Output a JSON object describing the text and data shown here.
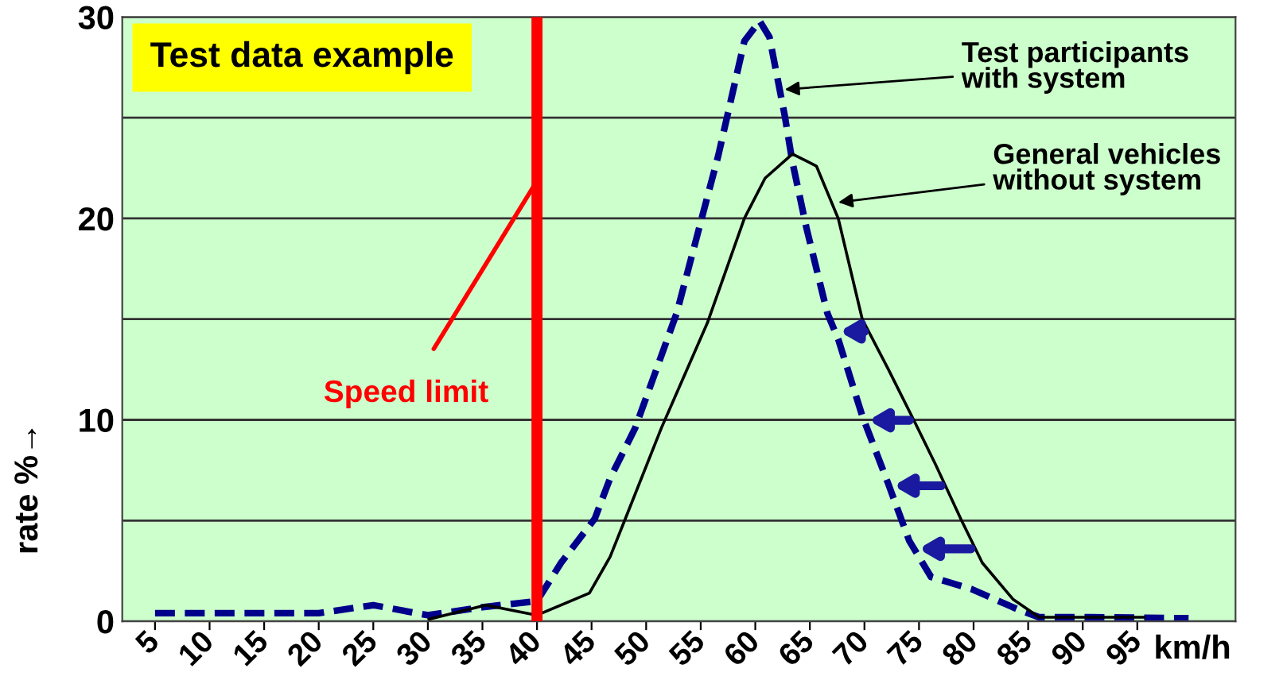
{
  "chart_data": {
    "type": "line",
    "title": "Test data example",
    "xlabel": "km/h",
    "ylabel": "rate %→",
    "xlim": [
      2,
      104
    ],
    "ylim": [
      0,
      30
    ],
    "xticks": [
      5,
      10,
      15,
      20,
      25,
      30,
      35,
      40,
      45,
      50,
      55,
      60,
      65,
      70,
      75,
      80,
      85,
      90,
      95
    ],
    "yticks": [
      0,
      {
        "value": 5,
        "label": null
      },
      10,
      {
        "value": 15,
        "label": null
      },
      20,
      {
        "value": 25,
        "label": null
      },
      30
    ],
    "grid": "y",
    "legend": false,
    "series": [
      {
        "color": "#00008b",
        "line_style": "dashed",
        "x": [
          5,
          10,
          15,
          20,
          25,
          30,
          35,
          40,
          42.2,
          45.3,
          46.7,
          49.0,
          52.8,
          56.6,
          59.0,
          60.4,
          61.3,
          62.7,
          63.4,
          64.7,
          66.6,
          67.6,
          69.8,
          72.2,
          74.1,
          76.1,
          79.8,
          84.0,
          86.0,
          90.8,
          99.7
        ],
        "values": [
          0.4,
          0.4,
          0.4,
          0.4,
          0.8,
          0.3,
          0.7,
          1.0,
          2.9,
          5.1,
          7.1,
          9.6,
          15.3,
          23.1,
          28.8,
          29.8,
          29.0,
          25.1,
          22.8,
          19.5,
          15.3,
          14.0,
          10.2,
          6.8,
          4.0,
          2.2,
          1.6,
          0.6,
          0.2,
          0.2,
          0.15
        ]
      },
      {
        "color": "#000000",
        "line_style": "solid",
        "x": [
          30.1,
          35.3,
          40.0,
          44.8,
          46.7,
          48.1,
          51.4,
          55.6,
          59.0,
          60.9,
          63.4,
          65.6,
          67.6,
          69.8,
          72.2,
          74.6,
          76.5,
          78.9,
          80.8,
          83.6,
          86.0,
          95.6
        ],
        "values": [
          0.1,
          0.8,
          0.3,
          1.4,
          3.2,
          5.1,
          9.6,
          14.8,
          20.0,
          22.0,
          23.2,
          22.6,
          20.0,
          15.0,
          12.5,
          9.9,
          7.8,
          5.0,
          2.9,
          1.1,
          0.2,
          0.2
        ]
      }
    ],
    "ref_lines": [
      {
        "axis": "x",
        "value": 40,
        "label": "Speed limit",
        "color": "#ff0000"
      }
    ],
    "annotations": [
      {
        "text": "Test participants\nwith system",
        "x": 62.7,
        "y": 26.4
      },
      {
        "text": "General vehicles\nwithout system",
        "x": 67.6,
        "y": 20.8
      }
    ]
  }
}
